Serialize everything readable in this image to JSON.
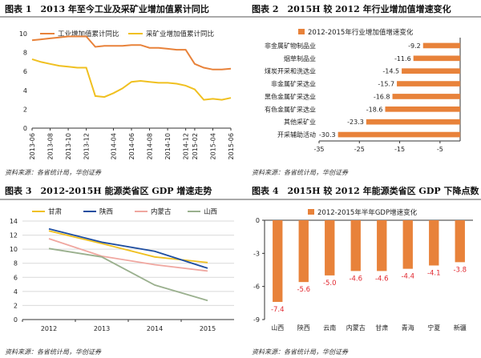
{
  "source_note": "资料来源：各省统计局，华创证券",
  "colors": {
    "orange": "#e8823a",
    "gold": "#f0c020",
    "blue": "#1f4ea0",
    "pink": "#f0a7a0",
    "gray": "#9ab08e",
    "grid": "#d9d9d9",
    "red_label": "#e1262e"
  },
  "chart_data": [
    {
      "id": "chart1",
      "type": "line",
      "title": "图表 1　2013 年至今工业及采矿业增加值累计同比",
      "legend": [
        "工业增加值累计同比",
        "采矿业增加值累计同比"
      ],
      "x": [
        "2013-06",
        "2013-07",
        "2013-08",
        "2013-09",
        "2013-10",
        "2013-11",
        "2013-12",
        "2014-02",
        "2014-03",
        "2014-04",
        "2014-05",
        "2014-06",
        "2014-07",
        "2014-08",
        "2014-09",
        "2014-10",
        "2014-11",
        "2014-12",
        "2015-02",
        "2015-03",
        "2015-04",
        "2015-05",
        "2015-06"
      ],
      "x_tick_labels": [
        "2013-06",
        "2013-08",
        "2013-10",
        "2013-12",
        "2014-04",
        "2014-06",
        "2014-08",
        "2014-10",
        "2014-12",
        "2015-02",
        "2015-04",
        "2015-06"
      ],
      "series": [
        {
          "name": "工业增加值累计同比",
          "values": [
            9.3,
            9.4,
            9.5,
            9.6,
            9.7,
            9.7,
            9.7,
            8.6,
            8.7,
            8.7,
            8.7,
            8.8,
            8.8,
            8.5,
            8.5,
            8.4,
            8.3,
            8.3,
            6.8,
            6.4,
            6.2,
            6.2,
            6.3
          ]
        },
        {
          "name": "采矿业增加值累计同比",
          "values": [
            7.3,
            7.0,
            6.8,
            6.6,
            6.5,
            6.4,
            6.4,
            3.4,
            3.3,
            3.7,
            4.2,
            4.9,
            5.0,
            4.9,
            4.8,
            4.8,
            4.7,
            4.5,
            4.1,
            3.0,
            3.1,
            3.0,
            3.2
          ]
        }
      ],
      "ylim": [
        0,
        10
      ],
      "y_ticks": [
        0,
        2,
        4,
        6,
        8,
        10
      ]
    },
    {
      "id": "chart2",
      "type": "bar",
      "orientation": "horizontal",
      "title": "图表 2　2015H 较 2012 年行业增加值增速变化",
      "legend": [
        "2012-2015年行业增加值增速变化"
      ],
      "categories": [
        "非金属矿物制品业",
        "烟草制品业",
        "煤炭开采和洗选业",
        "非金属矿采选业",
        "黑色金属矿采选业",
        "有色金属矿采选业",
        "其他采矿业",
        "开采辅助活动"
      ],
      "values": [
        -9.2,
        -11.6,
        -14.5,
        -15.7,
        -16.8,
        -18.6,
        -23.3,
        -30.3
      ],
      "value_labels": [
        "-9.2",
        "-11.6",
        "-14.5",
        "-15.7",
        "-16.8",
        "-18.6",
        "-23.3",
        "-30.3"
      ],
      "xlim": [
        -35,
        0
      ],
      "x_ticks": [
        -35,
        -25,
        -15,
        -5
      ],
      "x_tick_labels": [
        "-35",
        "-25",
        "-15",
        "-5"
      ]
    },
    {
      "id": "chart3",
      "type": "line",
      "title": "图表 3　2012-2015H 能源类省区 GDP 增速走势",
      "legend": [
        "甘肃",
        "陕西",
        "内蒙古",
        "山西"
      ],
      "x": [
        "2012",
        "2013",
        "2014",
        "2015"
      ],
      "series": [
        {
          "name": "甘肃",
          "values": [
            12.6,
            10.8,
            8.9,
            8.1
          ]
        },
        {
          "name": "陕西",
          "values": [
            12.9,
            11.0,
            9.7,
            7.3
          ]
        },
        {
          "name": "内蒙古",
          "values": [
            11.5,
            9.0,
            7.8,
            6.9
          ]
        },
        {
          "name": "山西",
          "values": [
            10.1,
            8.9,
            4.9,
            2.7
          ]
        }
      ],
      "ylim": [
        0,
        14
      ],
      "y_ticks": [
        0,
        2,
        4,
        6,
        8,
        10,
        12,
        14
      ]
    },
    {
      "id": "chart4",
      "type": "bar",
      "orientation": "vertical",
      "title": "图表 4　2015H 较 2012 年能源类省区 GDP 下降点数",
      "legend": [
        "2012-2015年半年GDP增速变化"
      ],
      "categories": [
        "山西",
        "陕西",
        "云南",
        "内蒙古",
        "甘肃",
        "青海",
        "宁夏",
        "新疆"
      ],
      "values": [
        -7.4,
        -5.6,
        -5.0,
        -4.6,
        -4.6,
        -4.4,
        -4.1,
        -3.8
      ],
      "value_labels": [
        "-7.4",
        "-5.6",
        "-5.0",
        "-4.6",
        "-4.6",
        "-4.4",
        "-4.1",
        "-3.8"
      ],
      "ylim": [
        -9,
        0
      ],
      "y_ticks": [
        0,
        -3,
        -6,
        -9
      ]
    }
  ]
}
